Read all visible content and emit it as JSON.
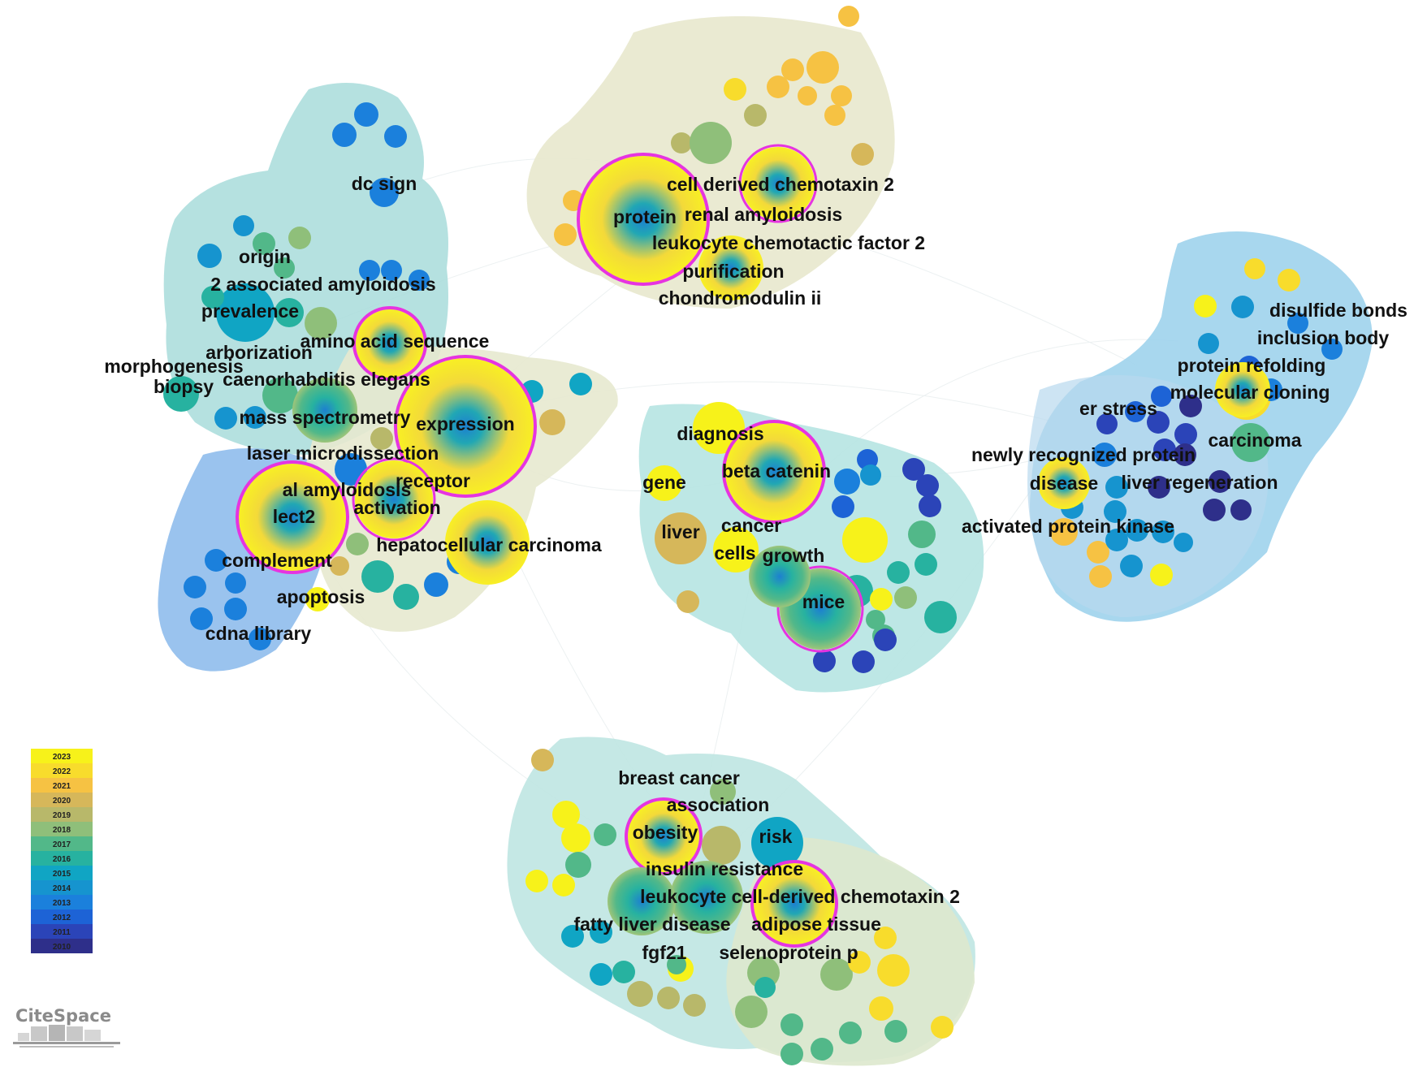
{
  "diagram": {
    "keywords": [
      "dc sign",
      "origin",
      "2 associated amyloidosis",
      "prevalence",
      "arborization",
      "amino acid sequence",
      "morphogenesis",
      "caenorhabditis elegans",
      "biopsy",
      "mass spectrometry",
      "expression",
      "laser microdissection",
      "receptor",
      "al amyloidosis",
      "activation",
      "lect2",
      "hepatocellular carcinoma",
      "complement",
      "apoptosis",
      "cdna library",
      "cell derived chemotaxin 2",
      "protein",
      "renal amyloidosis",
      "leukocyte chemotactic factor 2",
      "purification",
      "chondromodulin ii",
      "diagnosis",
      "beta catenin",
      "gene",
      "liver",
      "cancer",
      "cells",
      "growth",
      "mice",
      "disulfide bonds",
      "inclusion body",
      "protein refolding",
      "molecular cloning",
      "er stress",
      "carcinoma",
      "newly recognized protein",
      "disease",
      "liver regeneration",
      "activated protein kinase",
      "breast cancer",
      "association",
      "obesity",
      "risk",
      "insulin resistance",
      "leukocyte cell-derived chemotaxin 2",
      "fatty liver disease",
      "adipose tissue",
      "fgf21",
      "selenoprotein p"
    ]
  },
  "legend": {
    "years": [
      "2023",
      "2022",
      "2021",
      "2020",
      "2019",
      "2018",
      "2017",
      "2016",
      "2015",
      "2014",
      "2013",
      "2012",
      "2011",
      "2010"
    ],
    "colors": [
      "#f7f21a",
      "#f8dc2c",
      "#f6c243",
      "#d6b75a",
      "#b8b86a",
      "#8fbf7a",
      "#52b889",
      "#27b2a0",
      "#10a5c4",
      "#1694cf",
      "#1b80dc",
      "#1d63d6",
      "#2b44b8",
      "#2e2f8a"
    ]
  },
  "logo": {
    "text": "CiteSpace"
  }
}
